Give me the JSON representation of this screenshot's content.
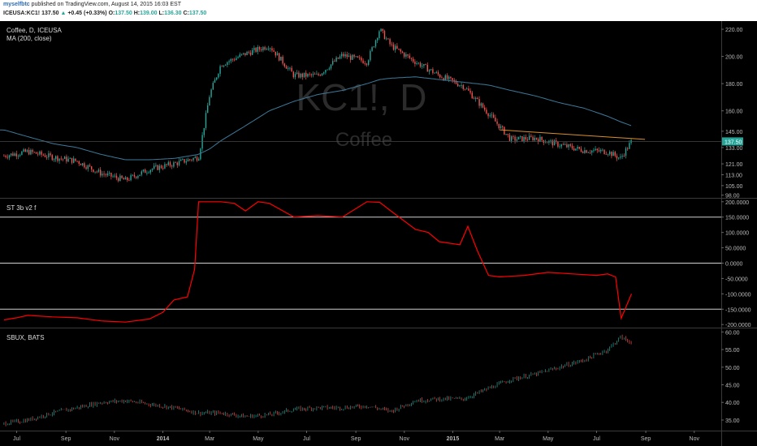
{
  "header": {
    "user": "myselfbtc",
    "published": "published on TradingView.com, August 14, 2015 16:03 EST",
    "symbol": "ICEUSA:KC1!",
    "last": "137.50",
    "change_arrow": "▲",
    "change": "+0.45 (+0.33%)",
    "o_label": "O:",
    "o_value": "137.50",
    "h_label": "H:",
    "h_value": "139.00",
    "l_label": "L:",
    "l_value": "136.30",
    "c_label": "C:",
    "c_value": "137.50"
  },
  "watermark": {
    "symbol": "KC1!, D",
    "name": "Coffee"
  },
  "colors": {
    "background": "#000000",
    "candle_up": "#26a69a",
    "candle_down": "#ef5350",
    "ma": "#3d7a9a",
    "indicator": "#ff0000",
    "trendline": "#d9902a",
    "hline": "#d0d0d0"
  },
  "chart_data": [
    {
      "type": "candlestick",
      "title": "Coffee, D, ICEUSA",
      "subtitle": "MA (200, close)",
      "yticks": [
        "220.00",
        "200.00",
        "180.00",
        "160.00",
        "145.00",
        "133.00",
        "121.00",
        "113.00",
        "105.00",
        "98.00"
      ],
      "ylim": [
        96,
        226
      ],
      "last_price_label": "137.50",
      "x": [
        "2013-06-15",
        "2013-07-15",
        "2013-08-15",
        "2013-09-15",
        "2013-10-15",
        "2013-11-15",
        "2013-12-15",
        "2014-01-15",
        "2014-02-15",
        "2014-03-01",
        "2014-03-15",
        "2014-04-15",
        "2014-05-15",
        "2014-06-15",
        "2014-07-15",
        "2014-08-15",
        "2014-09-15",
        "2014-10-01",
        "2014-10-15",
        "2014-11-15",
        "2014-12-15",
        "2015-01-15",
        "2015-02-15",
        "2015-03-15",
        "2015-04-15",
        "2015-05-15",
        "2015-06-15",
        "2015-07-15",
        "2015-07-31",
        "2015-08-14"
      ],
      "close": [
        127,
        130,
        126,
        123,
        114,
        109,
        117,
        121,
        126,
        172,
        194,
        202,
        208,
        186,
        186,
        201,
        196,
        220,
        208,
        196,
        186,
        178,
        158,
        139,
        140,
        135,
        131,
        130,
        125,
        137.5
      ],
      "ma_200": [
        146,
        141,
        136,
        133,
        128,
        124,
        124,
        125,
        128,
        132,
        138,
        149,
        160,
        167,
        172,
        175,
        180,
        183,
        184,
        185,
        183,
        181,
        179,
        175,
        171,
        166,
        162,
        156,
        152,
        149
      ],
      "trendline": {
        "from": [
          "2015-03-01",
          146
        ],
        "to": [
          "2015-08-31",
          139
        ]
      }
    },
    {
      "type": "line",
      "title": "ST 3b v2 f",
      "yticks": [
        "200.0000",
        "150.0000",
        "100.0000",
        "50.0000",
        "0.0000",
        "-50.0000",
        "-100.0000",
        "-150.0000",
        "-200.0000"
      ],
      "ylim": [
        -210,
        210
      ],
      "hlines": [
        150,
        0,
        -150
      ],
      "x": [
        "2013-06-15",
        "2013-07-01",
        "2013-07-15",
        "2013-08-15",
        "2013-09-15",
        "2013-10-15",
        "2013-11-15",
        "2013-12-15",
        "2014-01-01",
        "2014-01-15",
        "2014-02-01",
        "2014-02-10",
        "2014-02-15",
        "2014-03-15",
        "2014-04-01",
        "2014-04-15",
        "2014-05-01",
        "2014-05-15",
        "2014-06-15",
        "2014-07-15",
        "2014-08-15",
        "2014-09-15",
        "2014-10-01",
        "2014-10-15",
        "2014-11-15",
        "2014-12-01",
        "2014-12-15",
        "2015-01-10",
        "2015-01-20",
        "2015-02-01",
        "2015-02-15",
        "2015-03-01",
        "2015-04-01",
        "2015-05-01",
        "2015-06-01",
        "2015-07-01",
        "2015-07-15",
        "2015-07-25",
        "2015-08-01",
        "2015-08-14"
      ],
      "values": [
        -185,
        -178,
        -170,
        -175,
        -178,
        -188,
        -192,
        -182,
        -160,
        -120,
        -110,
        -20,
        200,
        200,
        195,
        170,
        200,
        195,
        150,
        155,
        150,
        200,
        198,
        170,
        110,
        100,
        70,
        60,
        120,
        40,
        -40,
        -45,
        -40,
        -30,
        -35,
        -40,
        -35,
        -45,
        -180,
        -100
      ]
    },
    {
      "type": "bar",
      "title": "SBUX, BATS",
      "yticks": [
        "60.00",
        "55.00",
        "50.00",
        "45.00",
        "40.00",
        "35.00"
      ],
      "ylim": [
        32,
        61
      ],
      "x": [
        "2013-06-15",
        "2013-07-15",
        "2013-08-15",
        "2013-09-15",
        "2013-10-15",
        "2013-11-15",
        "2013-12-15",
        "2014-01-15",
        "2014-02-15",
        "2014-03-15",
        "2014-04-15",
        "2014-05-15",
        "2014-06-15",
        "2014-07-15",
        "2014-08-15",
        "2014-09-15",
        "2014-10-15",
        "2014-11-15",
        "2014-12-15",
        "2015-01-15",
        "2015-02-15",
        "2015-03-15",
        "2015-04-15",
        "2015-05-15",
        "2015-06-15",
        "2015-07-15",
        "2015-07-31",
        "2015-08-14"
      ],
      "close": [
        34,
        35,
        37,
        38.5,
        40,
        40.5,
        39.5,
        38.5,
        37,
        37,
        36,
        36.5,
        38,
        38.5,
        38.5,
        39,
        37.5,
        40.5,
        41,
        41,
        44,
        46.5,
        48,
        50,
        52,
        55,
        58.5,
        57
      ]
    }
  ],
  "x_axis": {
    "ticks": [
      "Jul",
      "Sep",
      "Nov",
      "2014",
      "Mar",
      "May",
      "Jul",
      "Sep",
      "Nov",
      "2015",
      "Mar",
      "May",
      "Jul",
      "Sep",
      "Nov"
    ],
    "tick_dates": [
      "2013-07-01",
      "2013-09-01",
      "2013-11-01",
      "2014-01-01",
      "2014-03-01",
      "2014-05-01",
      "2014-07-01",
      "2014-09-01",
      "2014-11-01",
      "2015-01-01",
      "2015-03-01",
      "2015-05-01",
      "2015-07-01",
      "2015-09-01",
      "2015-11-01"
    ],
    "range": [
      "2013-06-10",
      "2015-12-05"
    ]
  }
}
